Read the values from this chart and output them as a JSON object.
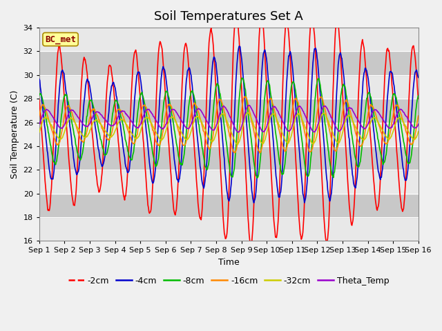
{
  "title": "Soil Temperatures Set A",
  "xlabel": "Time",
  "ylabel": "Soil Temperature (C)",
  "ylim": [
    16,
    34
  ],
  "annotation": "BC_met",
  "background_color": "#f0f0f0",
  "plot_bg_color": "#d8d8d8",
  "white_band_color": "#e8e8e8",
  "series_colors": {
    "-2cm": "#ff0000",
    "-4cm": "#0000cc",
    "-8cm": "#00bb00",
    "-16cm": "#ff8800",
    "-32cm": "#cccc00",
    "Theta_Temp": "#9900cc"
  },
  "xtick_positions": [
    1,
    2,
    3,
    4,
    5,
    6,
    7,
    8,
    9,
    10,
    11,
    12,
    13,
    14,
    15,
    16
  ],
  "xtick_labels": [
    "Sep 1",
    "Sep 2",
    "Sep 3",
    "Sep 4",
    "Sep 5",
    "Sep 6",
    "Sep 7",
    "Sep 8",
    "Sep 9",
    "Sep 10",
    "Sep 11",
    "Sep 12",
    "Sep 13",
    "Sep 14",
    "Sep 15",
    "Sep 16"
  ],
  "ytick_positions": [
    16,
    18,
    20,
    22,
    24,
    26,
    28,
    30,
    32,
    34
  ],
  "legend_order": [
    "-2cm",
    "-4cm",
    "-8cm",
    "-16cm",
    "-32cm",
    "Theta_Temp"
  ],
  "title_fontsize": 13,
  "label_fontsize": 9,
  "tick_fontsize": 8,
  "legend_fontsize": 9,
  "linewidth": 1.2
}
